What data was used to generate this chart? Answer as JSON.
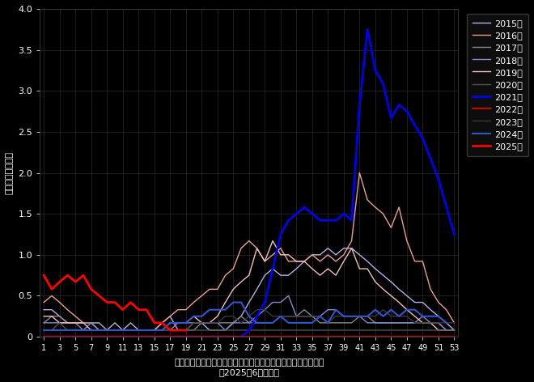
{
  "background_color": "#000000",
  "text_color": "#ffffff",
  "ylim": [
    0,
    4.0
  ],
  "xlim": [
    1,
    53
  ],
  "xticks": [
    1,
    3,
    5,
    7,
    9,
    11,
    13,
    15,
    17,
    19,
    21,
    23,
    25,
    27,
    29,
    31,
    33,
    35,
    37,
    39,
    41,
    43,
    45,
    47,
    49,
    51,
    53
  ],
  "yticks": [
    0,
    0.5,
    1.0,
    1.5,
    2.0,
    2.5,
    3.0,
    3.5,
    4.0
  ],
  "xlabel_line1": "三重県のマイコプラズマ肺炎（小児科）定点当たり患者届出数",
  "xlabel_line2": "（2025年6月現在）",
  "ylabel": "定点当たり患者数",
  "series": [
    {
      "year": "2015年",
      "color": "#b8b0e0",
      "linewidth": 1.0,
      "linestyle": "solid",
      "data": [
        0.33,
        0.33,
        0.25,
        0.17,
        0.17,
        0.17,
        0.17,
        0.17,
        0.08,
        0.17,
        0.08,
        0.17,
        0.08,
        0.08,
        0.08,
        0.17,
        0.25,
        0.08,
        0.08,
        0.17,
        0.17,
        0.08,
        0.08,
        0.08,
        0.17,
        0.25,
        0.42,
        0.58,
        0.75,
        0.83,
        0.75,
        0.75,
        0.83,
        0.92,
        1.0,
        1.0,
        1.08,
        1.0,
        1.08,
        1.08,
        1.0,
        0.92,
        0.83,
        0.75,
        0.67,
        0.58,
        0.5,
        0.42,
        0.42,
        0.33,
        0.25,
        0.17,
        0.08
      ]
    },
    {
      "year": "2016年",
      "color": "#e8a090",
      "linewidth": 1.0,
      "linestyle": "solid",
      "data": [
        0.42,
        0.5,
        0.42,
        0.33,
        0.25,
        0.17,
        0.17,
        0.08,
        0.08,
        0.08,
        0.08,
        0.08,
        0.08,
        0.08,
        0.08,
        0.17,
        0.25,
        0.33,
        0.33,
        0.42,
        0.5,
        0.58,
        0.58,
        0.75,
        0.83,
        1.08,
        1.17,
        1.08,
        0.92,
        1.0,
        1.08,
        0.92,
        0.92,
        0.92,
        1.0,
        0.92,
        1.0,
        0.92,
        1.0,
        1.17,
        2.0,
        1.67,
        1.58,
        1.5,
        1.33,
        1.58,
        1.17,
        0.92,
        0.92,
        0.58,
        0.42,
        0.33,
        0.17
      ]
    },
    {
      "year": "2017年",
      "color": "#888888",
      "linewidth": 1.0,
      "linestyle": "solid",
      "data": [
        0.17,
        0.25,
        0.25,
        0.17,
        0.17,
        0.17,
        0.17,
        0.17,
        0.08,
        0.08,
        0.08,
        0.08,
        0.08,
        0.08,
        0.08,
        0.08,
        0.08,
        0.08,
        0.08,
        0.08,
        0.17,
        0.17,
        0.17,
        0.17,
        0.17,
        0.25,
        0.17,
        0.17,
        0.17,
        0.17,
        0.25,
        0.25,
        0.25,
        0.33,
        0.25,
        0.17,
        0.17,
        0.17,
        0.17,
        0.17,
        0.25,
        0.25,
        0.17,
        0.17,
        0.17,
        0.17,
        0.17,
        0.17,
        0.17,
        0.17,
        0.17,
        0.08,
        0.08
      ]
    },
    {
      "year": "2018年",
      "color": "#8888cc",
      "linewidth": 1.0,
      "linestyle": "solid",
      "data": [
        0.17,
        0.17,
        0.17,
        0.17,
        0.17,
        0.08,
        0.17,
        0.08,
        0.08,
        0.08,
        0.08,
        0.08,
        0.08,
        0.08,
        0.08,
        0.08,
        0.08,
        0.17,
        0.17,
        0.17,
        0.17,
        0.17,
        0.17,
        0.08,
        0.17,
        0.17,
        0.17,
        0.25,
        0.33,
        0.42,
        0.42,
        0.5,
        0.25,
        0.25,
        0.25,
        0.25,
        0.33,
        0.33,
        0.25,
        0.25,
        0.25,
        0.17,
        0.17,
        0.17,
        0.17,
        0.17,
        0.17,
        0.17,
        0.25,
        0.17,
        0.17,
        0.08,
        0.08
      ]
    },
    {
      "year": "2019年",
      "color": "#f0c0c0",
      "linewidth": 1.0,
      "linestyle": "solid",
      "data": [
        0.25,
        0.25,
        0.17,
        0.17,
        0.17,
        0.17,
        0.08,
        0.08,
        0.08,
        0.08,
        0.08,
        0.08,
        0.08,
        0.08,
        0.08,
        0.08,
        0.17,
        0.17,
        0.17,
        0.25,
        0.17,
        0.17,
        0.25,
        0.42,
        0.58,
        0.67,
        0.75,
        1.08,
        0.92,
        1.17,
        1.0,
        1.0,
        0.92,
        0.92,
        0.83,
        0.75,
        0.83,
        0.75,
        0.92,
        1.08,
        0.83,
        0.83,
        0.67,
        0.58,
        0.5,
        0.42,
        0.33,
        0.25,
        0.17,
        0.17,
        0.08,
        0.08,
        0.08
      ]
    },
    {
      "year": "2020年",
      "color": "#505050",
      "linewidth": 1.0,
      "linestyle": "solid",
      "data": [
        0.08,
        0.08,
        0.17,
        0.08,
        0.08,
        0.08,
        0.08,
        0.08,
        0.08,
        0.08,
        0.08,
        0.08,
        0.08,
        0.08,
        0.08,
        0.08,
        0.08,
        0.08,
        0.08,
        0.08,
        0.08,
        0.08,
        0.08,
        0.08,
        0.08,
        0.08,
        0.08,
        0.08,
        0.08,
        0.08,
        0.08,
        0.08,
        0.08,
        0.08,
        0.08,
        0.08,
        0.08,
        0.08,
        0.08,
        0.08,
        0.08,
        0.08,
        0.08,
        0.08,
        0.08,
        0.08,
        0.08,
        0.08,
        0.08,
        0.08,
        0.08,
        0.08,
        0.08
      ]
    },
    {
      "year": "2021年",
      "color": "#0000ee",
      "linewidth": 2.0,
      "linestyle": "solid",
      "data": [
        0.0,
        0.0,
        0.0,
        0.0,
        0.0,
        0.0,
        0.0,
        0.0,
        0.0,
        0.0,
        0.0,
        0.0,
        0.0,
        0.0,
        0.0,
        0.0,
        0.0,
        0.0,
        0.0,
        0.0,
        0.0,
        0.0,
        0.0,
        0.0,
        0.0,
        0.0,
        0.08,
        0.25,
        0.42,
        0.83,
        1.25,
        1.42,
        1.5,
        1.58,
        1.5,
        1.42,
        1.42,
        1.42,
        1.5,
        1.42,
        2.83,
        3.75,
        3.25,
        3.08,
        2.67,
        2.83,
        2.75,
        2.58,
        2.42,
        2.17,
        1.92,
        1.58,
        1.25
      ]
    },
    {
      "year": "2022年",
      "color": "#cc0000",
      "linewidth": 1.5,
      "linestyle": "solid",
      "data": [
        0.0,
        0.0,
        0.0,
        0.0,
        0.0,
        0.0,
        0.0,
        0.0,
        0.0,
        0.0,
        0.0,
        0.0,
        0.0,
        0.0,
        0.0,
        0.0,
        0.0,
        0.0,
        0.0,
        0.0,
        0.0,
        0.0,
        0.0,
        0.0,
        0.0,
        0.0,
        0.0,
        0.0,
        0.0,
        0.0,
        0.0,
        0.0,
        0.0,
        0.0,
        0.0,
        0.0,
        0.0,
        0.0,
        0.0,
        0.0,
        0.0,
        0.0,
        0.0,
        0.0,
        0.0,
        0.0,
        0.0,
        0.0,
        0.0,
        0.0,
        0.0,
        0.0,
        0.0
      ]
    },
    {
      "year": "2023年",
      "color": "#383838",
      "linewidth": 1.0,
      "linestyle": "solid",
      "data": [
        0.08,
        0.08,
        0.08,
        0.08,
        0.08,
        0.08,
        0.08,
        0.08,
        0.08,
        0.08,
        0.08,
        0.08,
        0.08,
        0.08,
        0.08,
        0.08,
        0.08,
        0.08,
        0.08,
        0.17,
        0.17,
        0.17,
        0.17,
        0.25,
        0.25,
        0.17,
        0.25,
        0.33,
        0.33,
        0.25,
        0.25,
        0.25,
        0.25,
        0.25,
        0.25,
        0.25,
        0.17,
        0.25,
        0.25,
        0.25,
        0.25,
        0.25,
        0.25,
        0.33,
        0.25,
        0.25,
        0.25,
        0.17,
        0.17,
        0.17,
        0.17,
        0.17,
        0.17
      ]
    },
    {
      "year": "2024年",
      "color": "#3355cc",
      "linewidth": 1.5,
      "linestyle": "solid",
      "data": [
        0.08,
        0.08,
        0.08,
        0.08,
        0.08,
        0.08,
        0.08,
        0.08,
        0.08,
        0.08,
        0.08,
        0.08,
        0.08,
        0.08,
        0.08,
        0.08,
        0.17,
        0.17,
        0.17,
        0.25,
        0.25,
        0.33,
        0.33,
        0.33,
        0.42,
        0.42,
        0.25,
        0.17,
        0.17,
        0.17,
        0.25,
        0.17,
        0.17,
        0.17,
        0.17,
        0.25,
        0.17,
        0.33,
        0.25,
        0.25,
        0.25,
        0.25,
        0.33,
        0.25,
        0.33,
        0.25,
        0.33,
        0.33,
        0.25,
        0.25,
        0.25,
        0.17,
        null
      ]
    },
    {
      "year": "2025年",
      "color": "#ff0000",
      "linewidth": 2.0,
      "linestyle": "solid",
      "data": [
        0.75,
        0.58,
        0.67,
        0.75,
        0.67,
        0.75,
        0.58,
        0.5,
        0.42,
        0.42,
        0.33,
        0.42,
        0.33,
        0.33,
        0.17,
        0.17,
        0.08,
        0.08,
        0.08,
        null,
        null,
        null,
        null,
        null,
        null,
        null,
        null,
        null,
        null,
        null,
        null,
        null,
        null,
        null,
        null,
        null,
        null,
        null,
        null,
        null,
        null,
        null,
        null,
        null,
        null,
        null,
        null,
        null,
        null,
        null,
        null,
        null,
        null
      ]
    }
  ]
}
